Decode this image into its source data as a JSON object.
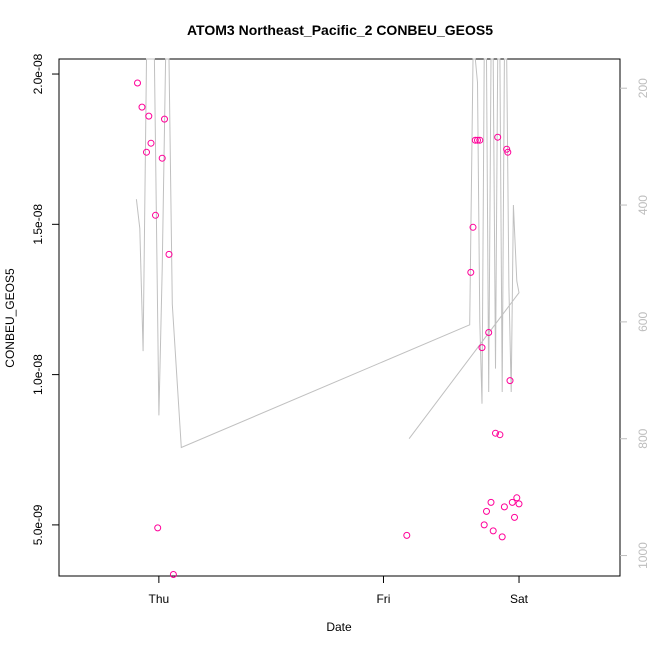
{
  "chart_data": {
    "type": "scatter",
    "title": "ATOM3 Northeast_Pacific_2 CONBEU_GEOS5",
    "xlabel": "Date",
    "ylabel": "CONBEU_GEOS5",
    "x_ticks": [
      "Thu",
      "Fri",
      "Sat"
    ],
    "y_ticks": [
      "5.0e-09",
      "1.0e-08",
      "1.5e-08",
      "2.0e-08"
    ],
    "y_tick_values": [
      5e-09,
      1e-08,
      1.5e-08,
      2e-08
    ],
    "y_right_ticks": [
      "200",
      "400",
      "600",
      "800",
      "1000"
    ],
    "y_right_tick_values": [
      200,
      400,
      600,
      800,
      1000
    ],
    "xlim_days": [
      -0.205,
      0.045
    ],
    "ylim": [
      3.3e-09,
      2.05e-08
    ],
    "y_right_lim": [
      150,
      1035
    ],
    "series": [
      {
        "kind": "points",
        "color": "#ff0099",
        "points": [
          {
            "x": -0.17,
            "y": 1.97e-08
          },
          {
            "x": -0.168,
            "y": 1.89e-08
          },
          {
            "x": -0.166,
            "y": 1.74e-08
          },
          {
            "x": -0.165,
            "y": 1.86e-08
          },
          {
            "x": -0.164,
            "y": 1.77e-08
          },
          {
            "x": -0.162,
            "y": 1.53e-08
          },
          {
            "x": -0.161,
            "y": 4.9e-09
          },
          {
            "x": -0.159,
            "y": 1.72e-08
          },
          {
            "x": -0.158,
            "y": 1.85e-08
          },
          {
            "x": -0.156,
            "y": 1.4e-08
          },
          {
            "x": -0.154,
            "y": 3.35e-09
          },
          {
            "x": -0.05,
            "y": 4.65e-09
          },
          {
            "x": -0.0215,
            "y": 1.34e-08
          },
          {
            "x": -0.0205,
            "y": 1.49e-08
          },
          {
            "x": -0.0195,
            "y": 1.78e-08
          },
          {
            "x": -0.0185,
            "y": 1.78e-08
          },
          {
            "x": -0.0175,
            "y": 1.78e-08
          },
          {
            "x": -0.0165,
            "y": 1.09e-08
          },
          {
            "x": -0.0155,
            "y": 5e-09
          },
          {
            "x": -0.0145,
            "y": 5.45e-09
          },
          {
            "x": -0.0135,
            "y": 1.14e-08
          },
          {
            "x": -0.0125,
            "y": 5.75e-09
          },
          {
            "x": -0.0115,
            "y": 4.8e-09
          },
          {
            "x": -0.0105,
            "y": 8.05e-09
          },
          {
            "x": -0.0095,
            "y": 1.79e-08
          },
          {
            "x": -0.0085,
            "y": 8e-09
          },
          {
            "x": -0.0075,
            "y": 4.6e-09
          },
          {
            "x": -0.0065,
            "y": 5.6e-09
          },
          {
            "x": -0.0055,
            "y": 1.75e-08
          },
          {
            "x": -0.005,
            "y": 1.74e-08
          },
          {
            "x": -0.004,
            "y": 9.8e-09
          },
          {
            "x": -0.003,
            "y": 5.75e-09
          },
          {
            "x": -0.002,
            "y": 5.25e-09
          },
          {
            "x": -0.001,
            "y": 5.9e-09
          },
          {
            "x": 0.0,
            "y": 5.7e-09
          }
        ]
      },
      {
        "kind": "line",
        "axis": "right",
        "color": "#c0c0c0",
        "points": [
          {
            "x": -0.1705,
            "y": 390
          },
          {
            "x": -0.169,
            "y": 440
          },
          {
            "x": -0.1675,
            "y": 650
          },
          {
            "x": -0.166,
            "y": 150
          },
          {
            "x": -0.164,
            "y": 150
          },
          {
            "x": -0.1625,
            "y": 150
          },
          {
            "x": -0.1605,
            "y": 760
          },
          {
            "x": -0.159,
            "y": 510
          },
          {
            "x": -0.1575,
            "y": 150
          },
          {
            "x": -0.156,
            "y": 150
          },
          {
            "x": -0.1545,
            "y": 570
          },
          {
            "x": -0.1505,
            "y": 815
          },
          {
            "x": -0.022,
            "y": 605
          },
          {
            "x": -0.0205,
            "y": 150
          },
          {
            "x": -0.0195,
            "y": 150
          },
          {
            "x": -0.0185,
            "y": 190
          },
          {
            "x": -0.0175,
            "y": 600
          },
          {
            "x": -0.0165,
            "y": 740
          },
          {
            "x": -0.0155,
            "y": 150
          },
          {
            "x": -0.0145,
            "y": 150
          },
          {
            "x": -0.0135,
            "y": 720
          },
          {
            "x": -0.0125,
            "y": 150
          },
          {
            "x": -0.0115,
            "y": 150
          },
          {
            "x": -0.0105,
            "y": 680
          },
          {
            "x": -0.0095,
            "y": 150
          },
          {
            "x": -0.0085,
            "y": 150
          },
          {
            "x": -0.0075,
            "y": 720
          },
          {
            "x": -0.0065,
            "y": 150
          },
          {
            "x": -0.0055,
            "y": 150
          },
          {
            "x": -0.0045,
            "y": 540
          },
          {
            "x": -0.0035,
            "y": 720
          },
          {
            "x": -0.0025,
            "y": 400
          },
          {
            "x": -0.001,
            "y": 530
          },
          {
            "x": 0.0,
            "y": 550
          },
          {
            "x": -0.049,
            "y": 800
          }
        ]
      }
    ],
    "grid": false,
    "legend": "none",
    "point_color": "#ff0099",
    "line_color": "#c0c0c0"
  }
}
